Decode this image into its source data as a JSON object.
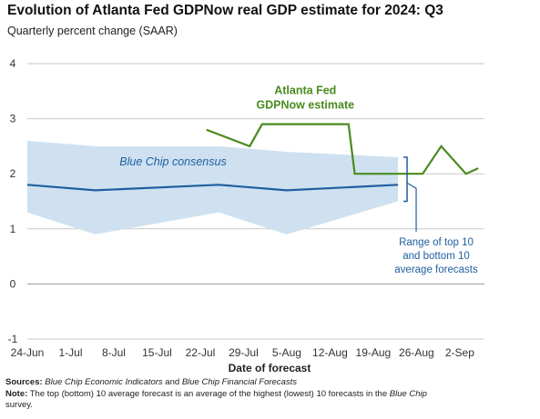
{
  "chart_data": {
    "type": "line",
    "title": "Evolution of Atlanta Fed GDPNow real GDP estimate for 2024: Q3",
    "subtitle": "Quarterly percent change (SAAR)",
    "xlabel": "Date of forecast",
    "ylabel": "",
    "ylim": [
      -1,
      4
    ],
    "yticks": [
      "-1",
      "0",
      "1",
      "2",
      "3",
      "4"
    ],
    "xlim": [
      "2024-06-24",
      "2024-09-06"
    ],
    "xticks": [
      {
        "date": "2024-06-24",
        "label": "24-Jun"
      },
      {
        "date": "2024-07-01",
        "label": "1-Jul"
      },
      {
        "date": "2024-07-08",
        "label": "8-Jul"
      },
      {
        "date": "2024-07-15",
        "label": "15-Jul"
      },
      {
        "date": "2024-07-22",
        "label": "22-Jul"
      },
      {
        "date": "2024-07-29",
        "label": "29-Jul"
      },
      {
        "date": "2024-08-05",
        "label": "5-Aug"
      },
      {
        "date": "2024-08-12",
        "label": "12-Aug"
      },
      {
        "date": "2024-08-19",
        "label": "19-Aug"
      },
      {
        "date": "2024-08-26",
        "label": "26-Aug"
      },
      {
        "date": "2024-09-02",
        "label": "2-Sep"
      }
    ],
    "grid": true,
    "series": [
      {
        "name": "Atlanta Fed GDPNow estimate",
        "label_lines": [
          "Atlanta Fed",
          "GDPNow estimate"
        ],
        "color": "#4a8a1f",
        "points": [
          {
            "x": "2024-07-23",
            "y": 2.8
          },
          {
            "x": "2024-07-30",
            "y": 2.5
          },
          {
            "x": "2024-08-01",
            "y": 2.9
          },
          {
            "x": "2024-08-08",
            "y": 2.9
          },
          {
            "x": "2024-08-15",
            "y": 2.9
          },
          {
            "x": "2024-08-16",
            "y": 2.0
          },
          {
            "x": "2024-08-23",
            "y": 2.0
          },
          {
            "x": "2024-08-27",
            "y": 2.0
          },
          {
            "x": "2024-08-30",
            "y": 2.5
          },
          {
            "x": "2024-09-03",
            "y": 2.0
          },
          {
            "x": "2024-09-05",
            "y": 2.1
          }
        ]
      },
      {
        "name": "Blue Chip consensus",
        "label": "Blue Chip consensus",
        "color": "#1f5fa0",
        "points": [
          {
            "x": "2024-06-24",
            "y": 1.8
          },
          {
            "x": "2024-07-05",
            "y": 1.7
          },
          {
            "x": "2024-07-25",
            "y": 1.8
          },
          {
            "x": "2024-08-05",
            "y": 1.7
          },
          {
            "x": "2024-08-23",
            "y": 1.8
          }
        ]
      }
    ],
    "range_band": {
      "label_lines": [
        "Range of top 10",
        "and bottom 10",
        "average forecasts"
      ],
      "fill": "#cfe1f0",
      "upper": [
        {
          "x": "2024-06-24",
          "y": 2.6
        },
        {
          "x": "2024-07-05",
          "y": 2.5
        },
        {
          "x": "2024-07-25",
          "y": 2.5
        },
        {
          "x": "2024-08-05",
          "y": 2.4
        },
        {
          "x": "2024-08-23",
          "y": 2.3
        }
      ],
      "lower": [
        {
          "x": "2024-06-24",
          "y": 1.3
        },
        {
          "x": "2024-07-05",
          "y": 0.9
        },
        {
          "x": "2024-07-25",
          "y": 1.3
        },
        {
          "x": "2024-08-05",
          "y": 0.9
        },
        {
          "x": "2024-08-23",
          "y": 1.5
        }
      ]
    }
  },
  "footer": {
    "sources_label": "Sources:",
    "sources_text_1": "Blue Chip Economic Indicators",
    "sources_and": " and ",
    "sources_text_2": "Blue Chip Financial Forecasts",
    "note_label": "Note:",
    "note_text": "The top (bottom) 10 average forecast is an average of the highest (lowest) 10 forecasts in the",
    "note_italic": "Blue Chip",
    "note_end": "survey."
  }
}
